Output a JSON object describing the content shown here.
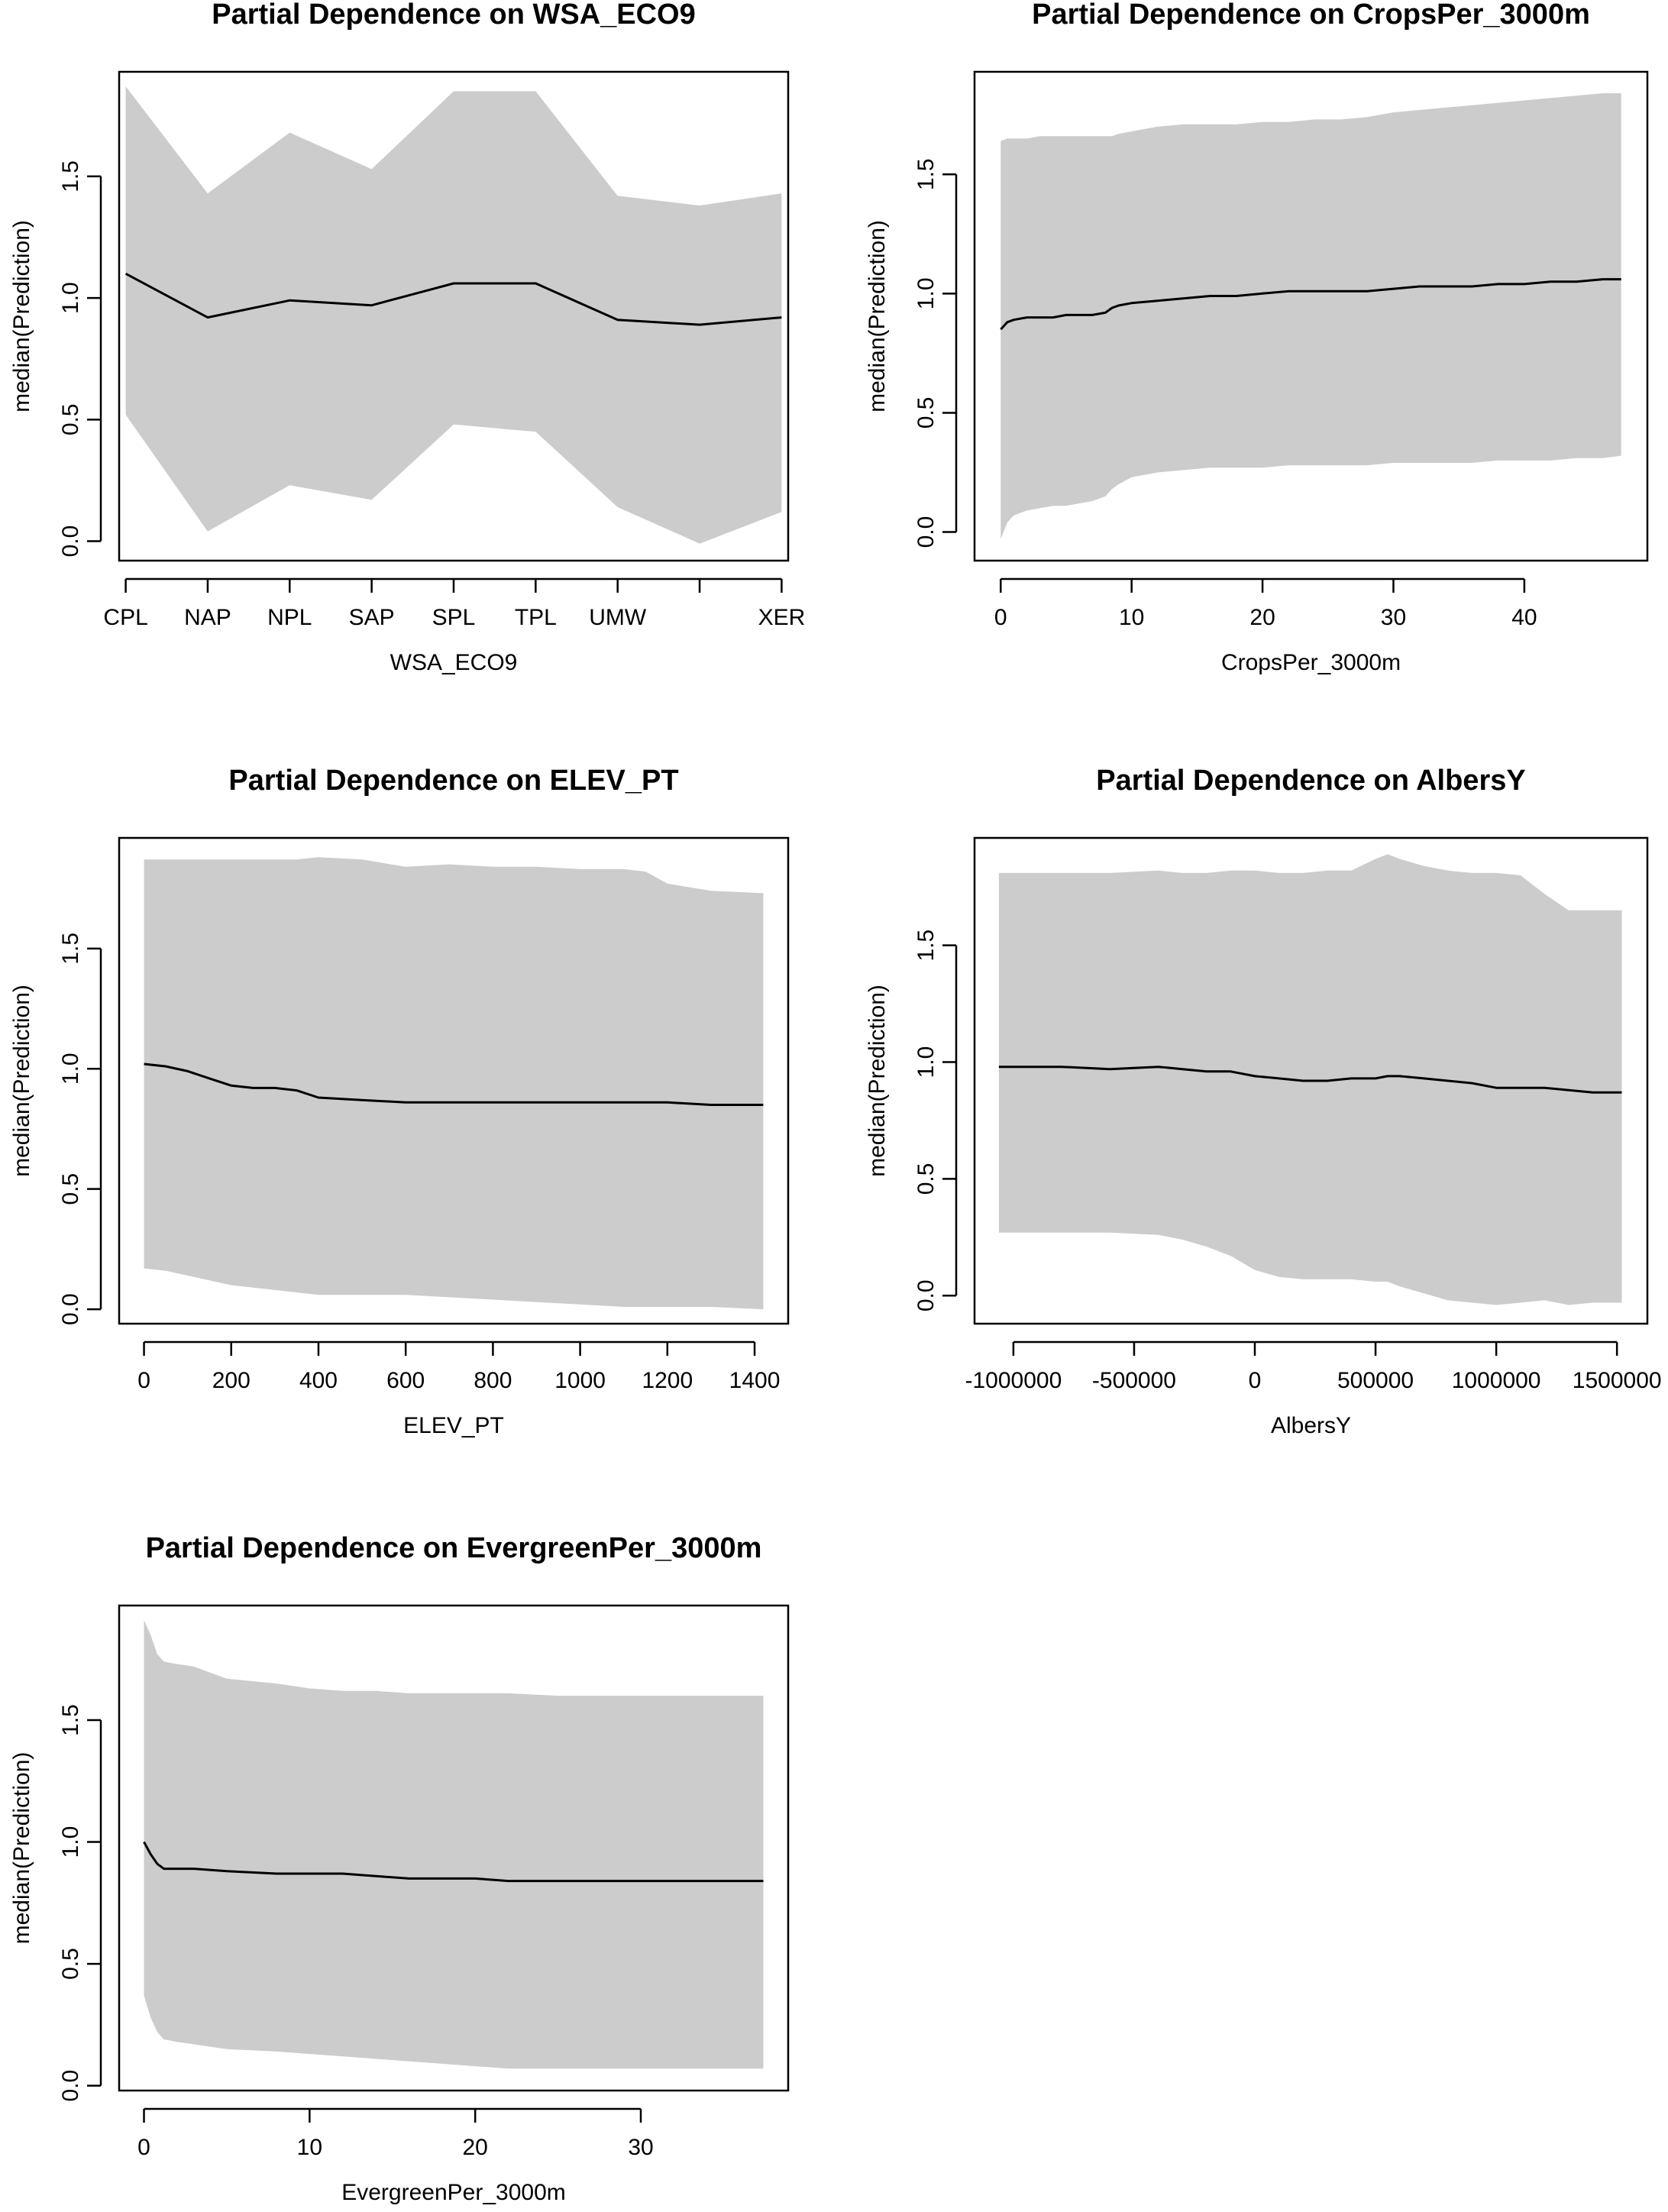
{
  "chart_data": [
    {
      "type": "line",
      "title": "Partial Dependence on WSA_ECO9",
      "xlabel": "WSA_ECO9",
      "ylabel": "median(Prediction)",
      "x_scale": "categorical",
      "x_ticks": [
        1,
        2,
        3,
        4,
        5,
        6,
        7,
        8,
        9
      ],
      "x_tick_labels": [
        "CPL",
        "NAP",
        "NPL",
        "SAP",
        "SPL",
        "TPL",
        "UMW",
        "",
        "XER"
      ],
      "y_ticks": [
        0.0,
        0.5,
        1.0,
        1.5
      ],
      "y_tick_labels": [
        "0.0",
        "0.5",
        "1.0",
        "1.5"
      ],
      "xlim": [
        0.92,
        9.08
      ],
      "ylim": [
        -0.08,
        1.93
      ],
      "x": [
        1,
        2,
        3,
        4,
        5,
        6,
        7,
        8,
        9
      ],
      "series": [
        {
          "role": "median",
          "values": [
            1.1,
            0.92,
            0.99,
            0.97,
            1.06,
            1.06,
            0.91,
            0.89,
            0.92
          ]
        },
        {
          "role": "band_upper",
          "values": [
            1.87,
            1.43,
            1.68,
            1.53,
            1.85,
            1.85,
            1.42,
            1.38,
            1.43
          ]
        },
        {
          "role": "band_lower",
          "values": [
            0.52,
            0.04,
            0.23,
            0.17,
            0.48,
            0.45,
            0.14,
            -0.01,
            0.12
          ]
        }
      ],
      "colors": {
        "band": "#cccccc",
        "line": "#000000"
      }
    },
    {
      "type": "line",
      "title": "Partial Dependence on CropsPer_3000m",
      "xlabel": "CropsPer_3000m",
      "ylabel": "median(Prediction)",
      "x_ticks": [
        0,
        10,
        20,
        30,
        40
      ],
      "x_tick_labels": [
        "0",
        "10",
        "20",
        "30",
        "40"
      ],
      "y_ticks": [
        0.0,
        0.5,
        1.0,
        1.5
      ],
      "y_tick_labels": [
        "0.0",
        "0.5",
        "1.0",
        "1.5"
      ],
      "xlim": [
        -2.0,
        49.4
      ],
      "ylim": [
        -0.12,
        1.93
      ],
      "x": [
        0,
        0.5,
        1,
        2,
        3,
        4,
        5,
        6,
        7,
        8,
        8.5,
        9,
        10,
        12,
        14,
        16,
        18,
        20,
        22,
        24,
        26,
        28,
        30,
        32,
        34,
        36,
        38,
        40,
        42,
        44,
        46,
        47.4
      ],
      "series": [
        {
          "role": "median",
          "values": [
            0.85,
            0.88,
            0.89,
            0.9,
            0.9,
            0.9,
            0.91,
            0.91,
            0.91,
            0.92,
            0.94,
            0.95,
            0.96,
            0.97,
            0.98,
            0.99,
            0.99,
            1.0,
            1.01,
            1.01,
            1.01,
            1.01,
            1.02,
            1.03,
            1.03,
            1.03,
            1.04,
            1.04,
            1.05,
            1.05,
            1.06,
            1.06
          ]
        },
        {
          "role": "band_upper",
          "values": [
            1.64,
            1.65,
            1.65,
            1.65,
            1.66,
            1.66,
            1.66,
            1.66,
            1.66,
            1.66,
            1.66,
            1.67,
            1.68,
            1.7,
            1.71,
            1.71,
            1.71,
            1.72,
            1.72,
            1.73,
            1.73,
            1.74,
            1.76,
            1.77,
            1.78,
            1.79,
            1.8,
            1.81,
            1.82,
            1.83,
            1.84,
            1.84
          ]
        },
        {
          "role": "band_lower",
          "values": [
            -0.03,
            0.04,
            0.07,
            0.09,
            0.1,
            0.11,
            0.11,
            0.12,
            0.13,
            0.15,
            0.18,
            0.2,
            0.23,
            0.25,
            0.26,
            0.27,
            0.27,
            0.27,
            0.28,
            0.28,
            0.28,
            0.28,
            0.29,
            0.29,
            0.29,
            0.29,
            0.3,
            0.3,
            0.3,
            0.31,
            0.31,
            0.32
          ]
        }
      ],
      "colors": {
        "band": "#cccccc",
        "line": "#000000"
      }
    },
    {
      "type": "line",
      "title": "Partial Dependence on ELEV_PT",
      "xlabel": "ELEV_PT",
      "ylabel": "median(Prediction)",
      "x_ticks": [
        0,
        200,
        400,
        600,
        800,
        1000,
        1200,
        1400
      ],
      "x_tick_labels": [
        "0",
        "200",
        "400",
        "600",
        "800",
        "1000",
        "1200",
        "1400"
      ],
      "y_ticks": [
        0.0,
        0.5,
        1.0,
        1.5
      ],
      "y_tick_labels": [
        "0.0",
        "0.5",
        "1.0",
        "1.5"
      ],
      "xlim": [
        -57,
        1477
      ],
      "ylim": [
        -0.06,
        1.96
      ],
      "x": [
        0,
        50,
        100,
        150,
        200,
        250,
        300,
        350,
        400,
        500,
        600,
        700,
        800,
        900,
        1000,
        1100,
        1150,
        1200,
        1300,
        1420
      ],
      "series": [
        {
          "role": "median",
          "values": [
            1.02,
            1.01,
            0.99,
            0.96,
            0.93,
            0.92,
            0.92,
            0.91,
            0.88,
            0.87,
            0.86,
            0.86,
            0.86,
            0.86,
            0.86,
            0.86,
            0.86,
            0.86,
            0.85,
            0.85
          ]
        },
        {
          "role": "band_upper",
          "values": [
            1.87,
            1.87,
            1.87,
            1.87,
            1.87,
            1.87,
            1.87,
            1.87,
            1.88,
            1.87,
            1.84,
            1.85,
            1.84,
            1.84,
            1.83,
            1.83,
            1.82,
            1.77,
            1.74,
            1.73
          ]
        },
        {
          "role": "band_lower",
          "values": [
            0.17,
            0.16,
            0.14,
            0.12,
            0.1,
            0.09,
            0.08,
            0.07,
            0.06,
            0.06,
            0.06,
            0.05,
            0.04,
            0.03,
            0.02,
            0.01,
            0.01,
            0.01,
            0.01,
            0.0
          ]
        }
      ],
      "colors": {
        "band": "#cccccc",
        "line": "#000000"
      }
    },
    {
      "type": "line",
      "title": "Partial Dependence on AlbersY",
      "xlabel": "AlbersY",
      "ylabel": "median(Prediction)",
      "x_ticks": [
        -1000000,
        -500000,
        0,
        500000,
        1000000,
        1500000
      ],
      "x_tick_labels": [
        "-1000000",
        "-500000",
        "0",
        "500000",
        "1000000",
        "1500000"
      ],
      "y_ticks": [
        0.0,
        0.5,
        1.0,
        1.5
      ],
      "y_tick_labels": [
        "0.0",
        "0.5",
        "1.0",
        "1.5"
      ],
      "xlim": [
        -1161000,
        1626000
      ],
      "ylim": [
        -0.12,
        1.96
      ],
      "x": [
        -1060000,
        -800000,
        -600000,
        -400000,
        -300000,
        -200000,
        -100000,
        0,
        100000,
        200000,
        300000,
        400000,
        500000,
        550000,
        600000,
        700000,
        800000,
        900000,
        1000000,
        1100000,
        1200000,
        1300000,
        1400000,
        1520000
      ],
      "series": [
        {
          "role": "median",
          "values": [
            0.98,
            0.98,
            0.97,
            0.98,
            0.97,
            0.96,
            0.96,
            0.94,
            0.93,
            0.92,
            0.92,
            0.93,
            0.93,
            0.94,
            0.94,
            0.93,
            0.92,
            0.91,
            0.89,
            0.89,
            0.89,
            0.88,
            0.87,
            0.87
          ]
        },
        {
          "role": "band_upper",
          "values": [
            1.81,
            1.81,
            1.81,
            1.82,
            1.81,
            1.81,
            1.82,
            1.82,
            1.81,
            1.81,
            1.82,
            1.82,
            1.87,
            1.89,
            1.87,
            1.84,
            1.82,
            1.81,
            1.81,
            1.8,
            1.72,
            1.65,
            1.65,
            1.65
          ]
        },
        {
          "role": "band_lower",
          "values": [
            0.27,
            0.27,
            0.27,
            0.26,
            0.24,
            0.21,
            0.17,
            0.11,
            0.08,
            0.07,
            0.07,
            0.07,
            0.06,
            0.06,
            0.04,
            0.01,
            -0.02,
            -0.03,
            -0.04,
            -0.03,
            -0.02,
            -0.04,
            -0.03,
            -0.03
          ]
        }
      ],
      "colors": {
        "band": "#cccccc",
        "line": "#000000"
      }
    },
    {
      "type": "line",
      "title": "Partial Dependence on EvergreenPer_3000m",
      "xlabel": "EvergreenPer_3000m",
      "ylabel": "median(Prediction)",
      "x_ticks": [
        0,
        10,
        20,
        30
      ],
      "x_tick_labels": [
        "0",
        "10",
        "20",
        "30"
      ],
      "y_ticks": [
        0.0,
        0.5,
        1.0,
        1.5
      ],
      "y_tick_labels": [
        "0.0",
        "0.5",
        "1.0",
        "1.5"
      ],
      "xlim": [
        -1.5,
        38.9
      ],
      "ylim": [
        -0.02,
        1.97
      ],
      "x": [
        0,
        0.4,
        0.8,
        1.2,
        2,
        3,
        5,
        8,
        10,
        12,
        14,
        16,
        18,
        20,
        22,
        25,
        28,
        30,
        32,
        35,
        37.4
      ],
      "series": [
        {
          "role": "median",
          "values": [
            1.0,
            0.95,
            0.91,
            0.89,
            0.89,
            0.89,
            0.88,
            0.87,
            0.87,
            0.87,
            0.86,
            0.85,
            0.85,
            0.85,
            0.84,
            0.84,
            0.84,
            0.84,
            0.84,
            0.84,
            0.84
          ]
        },
        {
          "role": "band_upper",
          "values": [
            1.91,
            1.85,
            1.77,
            1.74,
            1.73,
            1.72,
            1.67,
            1.65,
            1.63,
            1.62,
            1.62,
            1.61,
            1.61,
            1.61,
            1.61,
            1.6,
            1.6,
            1.6,
            1.6,
            1.6,
            1.6
          ]
        },
        {
          "role": "band_lower",
          "values": [
            0.37,
            0.28,
            0.22,
            0.19,
            0.18,
            0.17,
            0.15,
            0.14,
            0.13,
            0.12,
            0.11,
            0.1,
            0.09,
            0.08,
            0.07,
            0.07,
            0.07,
            0.07,
            0.07,
            0.07,
            0.07
          ]
        }
      ],
      "colors": {
        "band": "#cccccc",
        "line": "#000000"
      }
    }
  ]
}
